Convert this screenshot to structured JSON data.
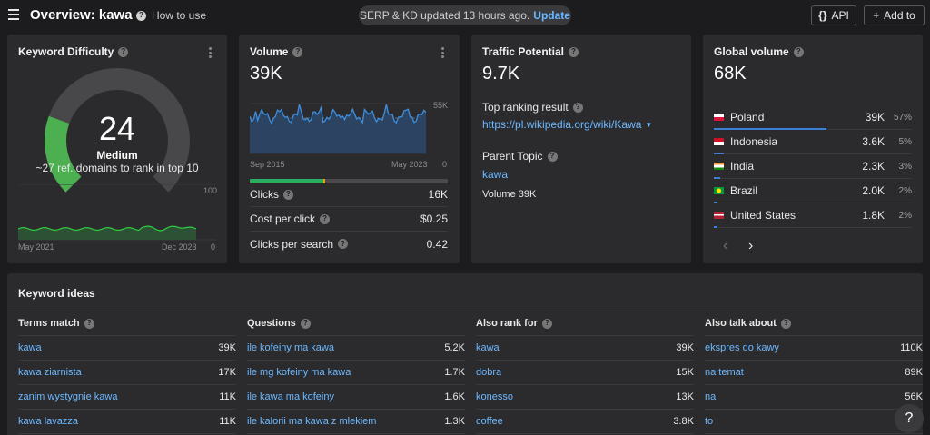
{
  "header": {
    "title": "Overview: kawa",
    "how_to_use": "How to use",
    "status_text": "SERP & KD updated 13 hours ago.",
    "update_label": "Update",
    "api_label": "API",
    "add_to_label": "Add to"
  },
  "kd": {
    "title": "Keyword Difficulty",
    "value": "24",
    "level": "Medium",
    "description": "~27 ref. domains to rank in top 10",
    "axis_max": "100",
    "axis_min": "0",
    "date_start": "May 2021",
    "date_end": "Dec 2023",
    "gauge_fraction": 0.24,
    "colors": {
      "gauge_fill": "#4caf50",
      "gauge_track": "#48484a",
      "trend": "#2ecc40"
    }
  },
  "volume": {
    "title": "Volume",
    "value": "39K",
    "axis_max": "55K",
    "axis_min": "0",
    "date_start": "Sep 2015",
    "date_end": "May 2023",
    "bar": {
      "clicks_fraction": 0.37,
      "paid_fraction": 0.012
    },
    "metrics": [
      {
        "name": "Clicks",
        "value": "16K"
      },
      {
        "name": "Cost per click",
        "value": "$0.25"
      },
      {
        "name": "Clicks per search",
        "value": "0.42"
      }
    ],
    "colors": {
      "line": "#3d8fe0",
      "clicks": "#27ae60",
      "paid": "#f39c12"
    }
  },
  "traffic": {
    "title": "Traffic Potential",
    "value": "9.7K",
    "top_result_label": "Top ranking result",
    "top_result_url": "https://pl.wikipedia.org/wiki/Kawa",
    "parent_topic_label": "Parent Topic",
    "parent_topic": "kawa",
    "parent_volume": "Volume 39K"
  },
  "global": {
    "title": "Global volume",
    "value": "68K",
    "countries": [
      {
        "name": "Poland",
        "volume": "39K",
        "pct": "57%",
        "share": 0.57,
        "flag": "pl-flag-icon"
      },
      {
        "name": "Indonesia",
        "volume": "3.6K",
        "pct": "5%",
        "share": 0.05,
        "flag": "id-flag-icon"
      },
      {
        "name": "India",
        "volume": "2.3K",
        "pct": "3%",
        "share": 0.03,
        "flag": "in-flag-icon"
      },
      {
        "name": "Brazil",
        "volume": "2.0K",
        "pct": "2%",
        "share": 0.02,
        "flag": "br-flag-icon"
      },
      {
        "name": "United States",
        "volume": "1.8K",
        "pct": "2%",
        "share": 0.02,
        "flag": "us-flag-icon"
      }
    ],
    "prev_glyph": "‹",
    "next_glyph": "›"
  },
  "ideas": {
    "title": "Keyword ideas",
    "columns": [
      {
        "heading": "Terms match",
        "rows": [
          {
            "kw": "kawa",
            "v": "39K"
          },
          {
            "kw": "kawa ziarnista",
            "v": "17K"
          },
          {
            "kw": "zanim wystygnie kawa",
            "v": "11K"
          },
          {
            "kw": "kawa lavazza",
            "v": "11K"
          }
        ]
      },
      {
        "heading": "Questions",
        "rows": [
          {
            "kw": "ile kofeiny ma kawa",
            "v": "5.2K"
          },
          {
            "kw": "ile mg kofeiny ma kawa",
            "v": "1.7K"
          },
          {
            "kw": "ile kawa ma kofeiny",
            "v": "1.6K"
          },
          {
            "kw": "ile kalorii ma kawa z mlekiem",
            "v": "1.3K"
          }
        ]
      },
      {
        "heading": "Also rank for",
        "rows": [
          {
            "kw": "kawa",
            "v": "39K"
          },
          {
            "kw": "dobra",
            "v": "15K"
          },
          {
            "kw": "konesso",
            "v": "13K"
          },
          {
            "kw": "coffee",
            "v": "3.8K"
          }
        ]
      },
      {
        "heading": "Also talk about",
        "rows": [
          {
            "kw": "ekspres do kawy",
            "v": "110K"
          },
          {
            "kw": "na temat",
            "v": "89K"
          },
          {
            "kw": "na",
            "v": "56K"
          },
          {
            "kw": "to",
            "v": ""
          }
        ]
      }
    ]
  },
  "help_glyph": "?"
}
